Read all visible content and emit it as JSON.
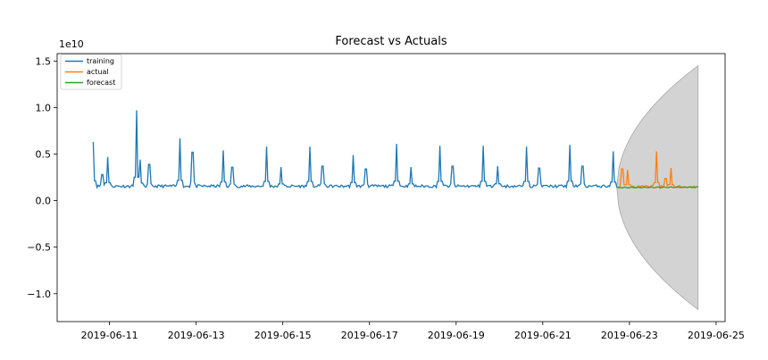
{
  "chart_data": {
    "type": "line",
    "title": "Forecast vs Actuals",
    "xlabel": "",
    "ylabel": "",
    "y_offset_label": "1e10",
    "x_type": "date",
    "xlim": [
      "2019-06-09T19:00",
      "2019-06-25T05:00"
    ],
    "ylim": [
      -1.3,
      1.58
    ],
    "y_unit_multiplier": 10000000000,
    "x_ticks": [
      "2019-06-11",
      "2019-06-13",
      "2019-06-15",
      "2019-06-17",
      "2019-06-19",
      "2019-06-21",
      "2019-06-23",
      "2019-06-25"
    ],
    "y_ticks": [
      -1.0,
      -0.5,
      0.0,
      0.5,
      1.0,
      1.5
    ],
    "y_tick_labels": [
      "−1.0",
      "−0.5",
      "0.0",
      "0.5",
      "1.0",
      "1.5"
    ],
    "grid": false,
    "legend_position": "top-left",
    "series": [
      {
        "name": "training",
        "color": "#1f77b4",
        "x_start": "2019-06-10T15:00",
        "x_end": "2019-06-22T17:00",
        "baseline": 0.155,
        "spikes": [
          {
            "x": "2019-06-10T15:00",
            "y": 0.63
          },
          {
            "x": "2019-06-10T20:00",
            "y": 0.28
          },
          {
            "x": "2019-06-10T23:00",
            "y": 0.47
          },
          {
            "x": "2019-06-11T15:00",
            "y": 0.97
          },
          {
            "x": "2019-06-11T17:00",
            "y": 0.44
          },
          {
            "x": "2019-06-11T22:00",
            "y": 0.39
          },
          {
            "x": "2019-06-12T15:00",
            "y": 0.67
          },
          {
            "x": "2019-06-12T22:00",
            "y": 0.52
          },
          {
            "x": "2019-06-13T15:00",
            "y": 0.54
          },
          {
            "x": "2019-06-13T20:00",
            "y": 0.36
          },
          {
            "x": "2019-06-14T15:00",
            "y": 0.58
          },
          {
            "x": "2019-06-14T23:00",
            "y": 0.36
          },
          {
            "x": "2019-06-15T15:00",
            "y": 0.58
          },
          {
            "x": "2019-06-15T22:00",
            "y": 0.37
          },
          {
            "x": "2019-06-16T15:00",
            "y": 0.49
          },
          {
            "x": "2019-06-16T22:00",
            "y": 0.34
          },
          {
            "x": "2019-06-17T15:00",
            "y": 0.61
          },
          {
            "x": "2019-06-17T23:00",
            "y": 0.36
          },
          {
            "x": "2019-06-18T15:00",
            "y": 0.59
          },
          {
            "x": "2019-06-18T22:00",
            "y": 0.37
          },
          {
            "x": "2019-06-19T15:00",
            "y": 0.59
          },
          {
            "x": "2019-06-19T23:00",
            "y": 0.37
          },
          {
            "x": "2019-06-20T15:00",
            "y": 0.58
          },
          {
            "x": "2019-06-20T22:00",
            "y": 0.35
          },
          {
            "x": "2019-06-21T15:00",
            "y": 0.6
          },
          {
            "x": "2019-06-21T22:00",
            "y": 0.37
          },
          {
            "x": "2019-06-22T15:00",
            "y": 0.53
          }
        ]
      },
      {
        "name": "actual",
        "color": "#ff7f0e",
        "x_start": "2019-06-22T17:00",
        "x_end": "2019-06-24T14:00",
        "baseline": 0.148,
        "spikes": [
          {
            "x": "2019-06-22T20:00",
            "y": 0.34
          },
          {
            "x": "2019-06-22T23:00",
            "y": 0.33
          },
          {
            "x": "2019-06-23T15:00",
            "y": 0.53
          },
          {
            "x": "2019-06-23T20:00",
            "y": 0.24
          },
          {
            "x": "2019-06-23T23:00",
            "y": 0.35
          }
        ]
      },
      {
        "name": "forecast",
        "color": "#2ca02c",
        "x_start": "2019-06-22T17:00",
        "x_end": "2019-06-24T14:00",
        "values_start": 0.14,
        "values_end": 0.145
      }
    ],
    "confidence_band": {
      "color": "#d3d3d3",
      "x_start": "2019-06-22T17:00",
      "x_end": "2019-06-24T14:00",
      "upper_end": 1.45,
      "lower_end": -1.17
    }
  }
}
